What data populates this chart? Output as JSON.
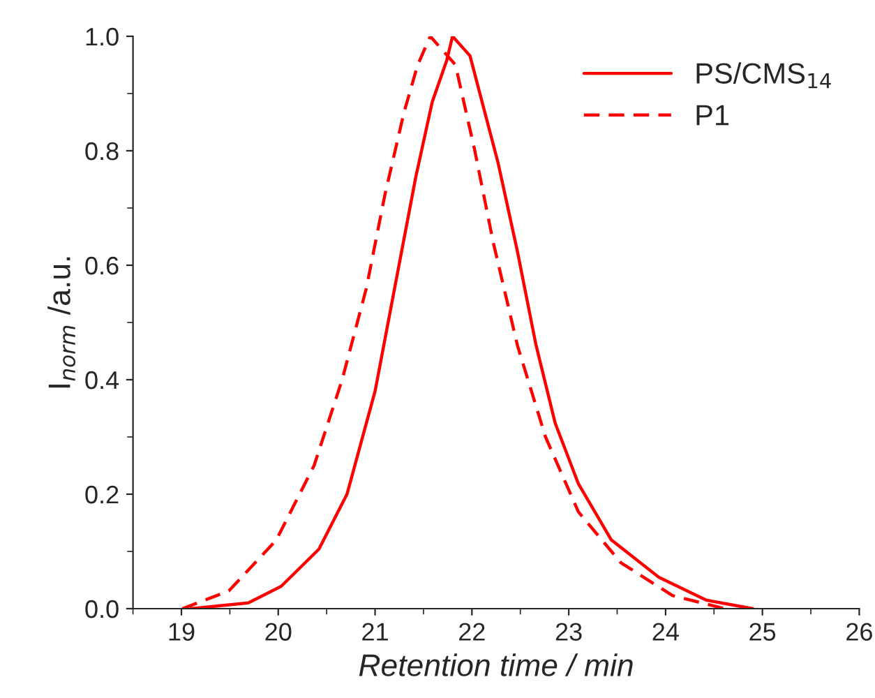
{
  "chart_data": {
    "type": "line",
    "xlabel": "Retention time / min",
    "ylabel": "I$_{norm}$ /a.u.",
    "xlim": [
      18.5,
      26
    ],
    "xticks": [
      19,
      20,
      21,
      22,
      23,
      24,
      25,
      26
    ],
    "ylim": [
      0,
      1.0
    ],
    "yticks": [
      {
        "value": 0,
        "label": "0.0"
      },
      {
        "value": 0.2,
        "label": "0.2"
      },
      {
        "value": 0.4,
        "label": "0.4"
      },
      {
        "value": 0.6,
        "label": "0.6"
      },
      {
        "value": 0.8,
        "label": "0.8"
      },
      {
        "value": 1.0,
        "label": "1.0"
      }
    ],
    "grid": false,
    "legend": "top right",
    "series": [
      {
        "name": "PS/CMS$_{14}$",
        "color": "#ff0000",
        "line_style": "solid",
        "x": [
          19.1,
          19.69,
          20.03,
          20.42,
          20.71,
          21.0,
          21.22,
          21.42,
          21.59,
          21.74,
          21.8,
          21.98,
          22.27,
          22.47,
          22.66,
          22.86,
          23.1,
          23.44,
          23.93,
          24.42,
          24.9
        ],
        "values": [
          0,
          0.01,
          0.039,
          0.104,
          0.2,
          0.38,
          0.576,
          0.754,
          0.885,
          0.958,
          1.0,
          0.966,
          0.779,
          0.624,
          0.462,
          0.324,
          0.218,
          0.12,
          0.055,
          0.015,
          0
        ]
      },
      {
        "name": "P1",
        "color": "#ff0000",
        "line_style": "dashed",
        "x": [
          19.01,
          19.49,
          19.98,
          20.37,
          20.66,
          20.91,
          21.1,
          21.3,
          21.44,
          21.57,
          21.83,
          22.03,
          22.22,
          22.47,
          22.76,
          23.1,
          23.54,
          24.07,
          24.61
        ],
        "values": [
          0,
          0.031,
          0.12,
          0.25,
          0.4,
          0.56,
          0.722,
          0.868,
          0.95,
          1.0,
          0.95,
          0.8,
          0.64,
          0.46,
          0.3,
          0.169,
          0.08,
          0.023,
          0
        ]
      }
    ]
  }
}
